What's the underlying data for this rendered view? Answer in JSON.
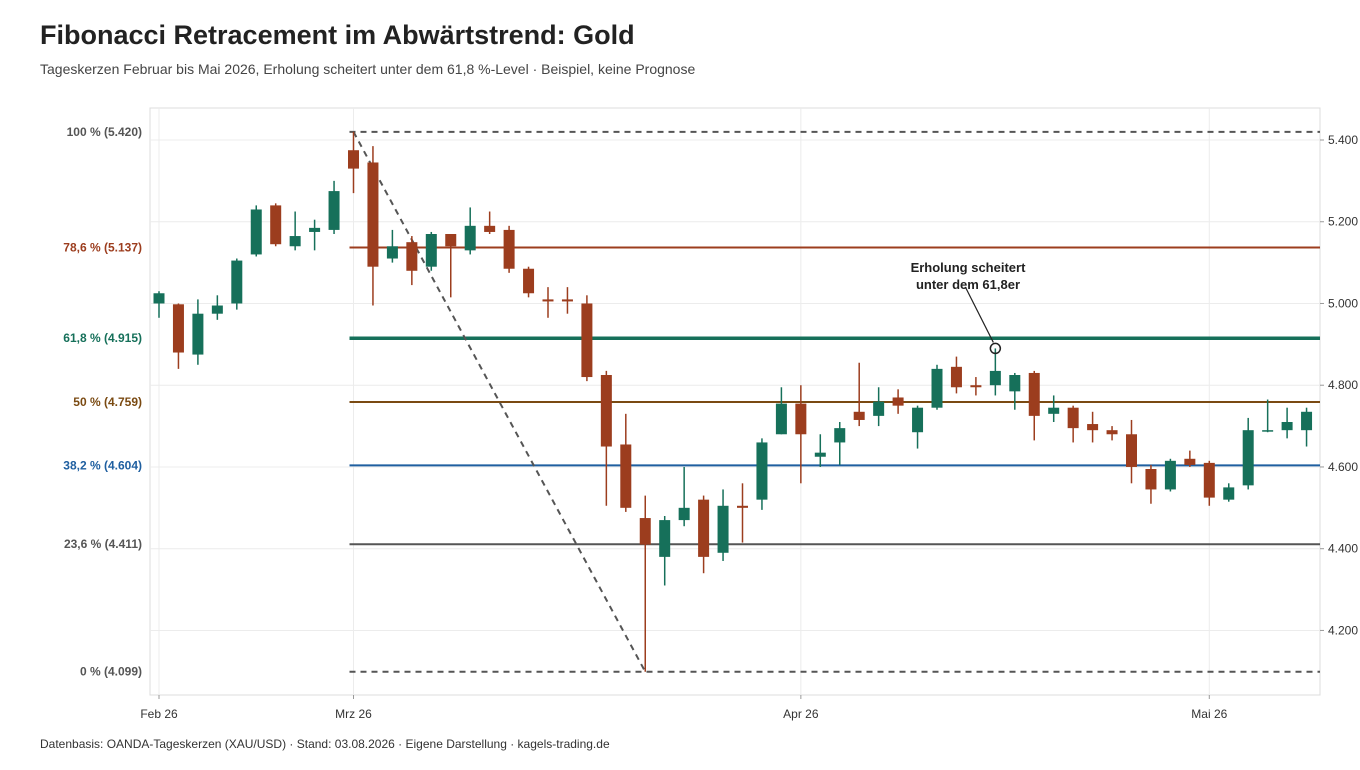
{
  "header": {
    "title": "Fibonacci Retracement im Abwärtstrend: Gold",
    "subtitle": "Tageskerzen Februar bis Mai 2026, Erholung scheitert unter dem 61,8 %-Level · Beispiel, keine Prognose"
  },
  "footer": {
    "source": "Datenbasis: OANDA-Tageskerzen (XAU/USD) · Stand: 03.08.2026 · Eigene Darstellung · kagels-trading.de"
  },
  "chart_data": {
    "type": "candlestick",
    "title": "Fibonacci Retracement im Abwärtstrend: Gold",
    "ylim": [
      4080,
      5450
    ],
    "grid": true,
    "y_axis_position": "right",
    "yticks": [
      4200,
      4400,
      4600,
      4800,
      5000,
      5200,
      5400
    ],
    "ytick_labels": [
      "4.200",
      "4.400",
      "4.600",
      "4.800",
      "5.000",
      "5.200",
      "5.400"
    ],
    "x_ticks": [
      {
        "label": "Feb 26",
        "day": 0
      },
      {
        "label": "Mrz 26",
        "day": 10
      },
      {
        "label": "Apr 26",
        "day": 33
      },
      {
        "label": "Mai 26",
        "day": 54
      }
    ],
    "colors": {
      "up": "#16705a",
      "down": "#9c3d1e",
      "grid": "#ececec",
      "swing_line": "#555555"
    },
    "fib_levels": [
      {
        "label": "100 % (5.420)",
        "value": 5420,
        "color": "#555555",
        "style": "dashed"
      },
      {
        "label": "78,6 % (5.137)",
        "value": 5137,
        "color": "#9c3d1e",
        "style": "solid"
      },
      {
        "label": "61,8 % (4.915)",
        "value": 4915,
        "color": "#16705a",
        "style": "solid-thick"
      },
      {
        "label": "50 % (4.759)",
        "value": 4759,
        "color": "#7a4a12",
        "style": "solid"
      },
      {
        "label": "38,2 % (4.604)",
        "value": 4604,
        "color": "#1f5fa0",
        "style": "solid"
      },
      {
        "label": "23,6 % (4.411)",
        "value": 4411,
        "color": "#555555",
        "style": "solid"
      },
      {
        "label": "0 % (4.099)",
        "value": 4099,
        "color": "#555555",
        "style": "dashed"
      }
    ],
    "fib_start_day": 10,
    "swing": {
      "high_day": 10,
      "high": 5420,
      "low_day": 25,
      "low": 4099
    },
    "annotation": {
      "line1": "Erholung scheitert",
      "line2": "unter dem 61,8er",
      "day": 43,
      "value": 4890
    },
    "candles": [
      {
        "day": 0,
        "o": 5000,
        "h": 5030,
        "l": 4965,
        "c": 5025
      },
      {
        "day": 1,
        "o": 4998,
        "h": 5000,
        "l": 4840,
        "c": 4880
      },
      {
        "day": 2,
        "o": 4875,
        "h": 5010,
        "l": 4850,
        "c": 4975
      },
      {
        "day": 3,
        "o": 4975,
        "h": 5020,
        "l": 4960,
        "c": 4995
      },
      {
        "day": 4,
        "o": 5000,
        "h": 5110,
        "l": 4985,
        "c": 5105
      },
      {
        "day": 5,
        "o": 5120,
        "h": 5240,
        "l": 5115,
        "c": 5230
      },
      {
        "day": 6,
        "o": 5240,
        "h": 5245,
        "l": 5140,
        "c": 5145
      },
      {
        "day": 7,
        "o": 5140,
        "h": 5225,
        "l": 5130,
        "c": 5165
      },
      {
        "day": 8,
        "o": 5175,
        "h": 5205,
        "l": 5130,
        "c": 5185
      },
      {
        "day": 9,
        "o": 5180,
        "h": 5300,
        "l": 5170,
        "c": 5275
      },
      {
        "day": 10,
        "o": 5375,
        "h": 5420,
        "l": 5270,
        "c": 5330
      },
      {
        "day": 11,
        "o": 5345,
        "h": 5385,
        "l": 4995,
        "c": 5090
      },
      {
        "day": 12,
        "o": 5110,
        "h": 5180,
        "l": 5100,
        "c": 5140
      },
      {
        "day": 13,
        "o": 5150,
        "h": 5165,
        "l": 5045,
        "c": 5080
      },
      {
        "day": 14,
        "o": 5090,
        "h": 5175,
        "l": 5080,
        "c": 5170
      },
      {
        "day": 15,
        "o": 5170,
        "h": 5170,
        "l": 5015,
        "c": 5140
      },
      {
        "day": 16,
        "o": 5130,
        "h": 5235,
        "l": 5120,
        "c": 5190
      },
      {
        "day": 17,
        "o": 5190,
        "h": 5225,
        "l": 5170,
        "c": 5175
      },
      {
        "day": 18,
        "o": 5180,
        "h": 5190,
        "l": 5075,
        "c": 5085
      },
      {
        "day": 19,
        "o": 5085,
        "h": 5090,
        "l": 5015,
        "c": 5025
      },
      {
        "day": 20,
        "o": 5010,
        "h": 5040,
        "l": 4965,
        "c": 5005
      },
      {
        "day": 21,
        "o": 5010,
        "h": 5040,
        "l": 4975,
        "c": 5005
      },
      {
        "day": 22,
        "o": 5000,
        "h": 5020,
        "l": 4810,
        "c": 4820
      },
      {
        "day": 23,
        "o": 4825,
        "h": 4835,
        "l": 4505,
        "c": 4650
      },
      {
        "day": 24,
        "o": 4655,
        "h": 4730,
        "l": 4490,
        "c": 4500
      },
      {
        "day": 25,
        "o": 4475,
        "h": 4530,
        "l": 4099,
        "c": 4410
      },
      {
        "day": 26,
        "o": 4380,
        "h": 4480,
        "l": 4310,
        "c": 4470
      },
      {
        "day": 27,
        "o": 4470,
        "h": 4600,
        "l": 4455,
        "c": 4500
      },
      {
        "day": 28,
        "o": 4520,
        "h": 4530,
        "l": 4340,
        "c": 4380
      },
      {
        "day": 29,
        "o": 4390,
        "h": 4545,
        "l": 4370,
        "c": 4505
      },
      {
        "day": 30,
        "o": 4505,
        "h": 4560,
        "l": 4415,
        "c": 4500
      },
      {
        "day": 31,
        "o": 4520,
        "h": 4670,
        "l": 4495,
        "c": 4660
      },
      {
        "day": 32,
        "o": 4680,
        "h": 4795,
        "l": 4680,
        "c": 4755
      },
      {
        "day": 33,
        "o": 4755,
        "h": 4800,
        "l": 4560,
        "c": 4680
      },
      {
        "day": 34,
        "o": 4625,
        "h": 4680,
        "l": 4600,
        "c": 4635
      },
      {
        "day": 35,
        "o": 4660,
        "h": 4710,
        "l": 4605,
        "c": 4695
      },
      {
        "day": 36,
        "o": 4735,
        "h": 4855,
        "l": 4700,
        "c": 4715
      },
      {
        "day": 37,
        "o": 4725,
        "h": 4795,
        "l": 4700,
        "c": 4760
      },
      {
        "day": 38,
        "o": 4770,
        "h": 4790,
        "l": 4730,
        "c": 4750
      },
      {
        "day": 39,
        "o": 4685,
        "h": 4750,
        "l": 4645,
        "c": 4745
      },
      {
        "day": 40,
        "o": 4745,
        "h": 4850,
        "l": 4740,
        "c": 4840
      },
      {
        "day": 41,
        "o": 4845,
        "h": 4870,
        "l": 4780,
        "c": 4795
      },
      {
        "day": 42,
        "o": 4800,
        "h": 4820,
        "l": 4775,
        "c": 4795
      },
      {
        "day": 43,
        "o": 4800,
        "h": 4890,
        "l": 4775,
        "c": 4835
      },
      {
        "day": 44,
        "o": 4785,
        "h": 4830,
        "l": 4740,
        "c": 4825
      },
      {
        "day": 45,
        "o": 4830,
        "h": 4835,
        "l": 4665,
        "c": 4725
      },
      {
        "day": 46,
        "o": 4730,
        "h": 4775,
        "l": 4710,
        "c": 4745
      },
      {
        "day": 47,
        "o": 4745,
        "h": 4750,
        "l": 4660,
        "c": 4695
      },
      {
        "day": 48,
        "o": 4705,
        "h": 4735,
        "l": 4660,
        "c": 4690
      },
      {
        "day": 49,
        "o": 4690,
        "h": 4700,
        "l": 4665,
        "c": 4680
      },
      {
        "day": 50,
        "o": 4680,
        "h": 4715,
        "l": 4560,
        "c": 4600
      },
      {
        "day": 51,
        "o": 4595,
        "h": 4605,
        "l": 4510,
        "c": 4545
      },
      {
        "day": 52,
        "o": 4545,
        "h": 4620,
        "l": 4540,
        "c": 4615
      },
      {
        "day": 53,
        "o": 4620,
        "h": 4640,
        "l": 4600,
        "c": 4605
      },
      {
        "day": 54,
        "o": 4610,
        "h": 4615,
        "l": 4505,
        "c": 4525
      },
      {
        "day": 55,
        "o": 4520,
        "h": 4560,
        "l": 4515,
        "c": 4550
      },
      {
        "day": 56,
        "o": 4555,
        "h": 4720,
        "l": 4545,
        "c": 4690
      },
      {
        "day": 57,
        "o": 4690,
        "h": 4765,
        "l": 4685,
        "c": 4690
      },
      {
        "day": 58,
        "o": 4690,
        "h": 4745,
        "l": 4670,
        "c": 4710
      },
      {
        "day": 59,
        "o": 4690,
        "h": 4745,
        "l": 4650,
        "c": 4735
      }
    ]
  }
}
